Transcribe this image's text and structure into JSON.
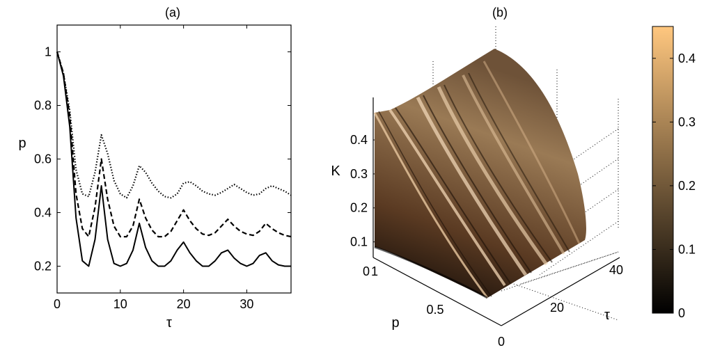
{
  "chart_data": [
    {
      "panel": "a",
      "type": "line",
      "title": "(a)",
      "xlabel": "τ",
      "ylabel": "p",
      "xlim": [
        0,
        37
      ],
      "ylim": [
        0.1,
        1.1
      ],
      "xticks": [
        "0",
        "10",
        "20",
        "30"
      ],
      "yticks": [
        "0.2",
        "0.4",
        "0.6",
        "0.8",
        "1"
      ],
      "grid": false,
      "series": [
        {
          "style": "dotted",
          "x": [
            0,
            1,
            2,
            3,
            4,
            5,
            6,
            7,
            8,
            9,
            10,
            11,
            12,
            13,
            14,
            15,
            16,
            17,
            18,
            19,
            20,
            21,
            22,
            23,
            24,
            25,
            26,
            27,
            28,
            29,
            30,
            31,
            32,
            33,
            34,
            35,
            36,
            37
          ],
          "y": [
            1.0,
            0.92,
            0.78,
            0.56,
            0.47,
            0.46,
            0.55,
            0.69,
            0.62,
            0.52,
            0.47,
            0.455,
            0.5,
            0.575,
            0.55,
            0.51,
            0.48,
            0.46,
            0.455,
            0.47,
            0.51,
            0.515,
            0.5,
            0.48,
            0.47,
            0.465,
            0.475,
            0.49,
            0.505,
            0.49,
            0.475,
            0.465,
            0.47,
            0.49,
            0.5,
            0.49,
            0.48,
            0.465
          ]
        },
        {
          "style": "dashed",
          "x": [
            0,
            1,
            2,
            3,
            4,
            5,
            6,
            7,
            8,
            9,
            10,
            11,
            12,
            13,
            14,
            15,
            16,
            17,
            18,
            19,
            20,
            21,
            22,
            23,
            24,
            25,
            26,
            27,
            28,
            29,
            30,
            31,
            32,
            33,
            34,
            35,
            36,
            37
          ],
          "y": [
            1.0,
            0.92,
            0.76,
            0.47,
            0.34,
            0.31,
            0.42,
            0.6,
            0.45,
            0.35,
            0.31,
            0.31,
            0.35,
            0.45,
            0.38,
            0.335,
            0.31,
            0.31,
            0.33,
            0.37,
            0.41,
            0.37,
            0.34,
            0.32,
            0.315,
            0.325,
            0.35,
            0.375,
            0.35,
            0.33,
            0.32,
            0.315,
            0.33,
            0.36,
            0.34,
            0.325,
            0.315,
            0.31
          ]
        },
        {
          "style": "solid",
          "x": [
            0,
            1,
            2,
            3,
            4,
            5,
            6,
            7,
            8,
            9,
            10,
            11,
            12,
            13,
            14,
            15,
            16,
            17,
            18,
            19,
            20,
            21,
            22,
            23,
            24,
            25,
            26,
            27,
            28,
            29,
            30,
            31,
            32,
            33,
            34,
            35,
            36,
            37
          ],
          "y": [
            1.0,
            0.91,
            0.72,
            0.38,
            0.22,
            0.2,
            0.3,
            0.5,
            0.3,
            0.21,
            0.2,
            0.21,
            0.26,
            0.36,
            0.27,
            0.22,
            0.2,
            0.2,
            0.22,
            0.26,
            0.29,
            0.25,
            0.22,
            0.2,
            0.2,
            0.22,
            0.25,
            0.26,
            0.23,
            0.21,
            0.2,
            0.21,
            0.24,
            0.25,
            0.22,
            0.205,
            0.2,
            0.2
          ]
        }
      ]
    },
    {
      "panel": "b",
      "type": "surface",
      "title": "(b)",
      "zlabel": "K",
      "ylabel": "p",
      "xlabel": "τ",
      "zticks": [
        "0.1",
        "0.2",
        "0.3",
        "0.4"
      ],
      "pticks": [
        "0",
        "1",
        "0.5",
        "0"
      ],
      "tauticks": [
        "20",
        "40"
      ],
      "colorbar": {
        "min": 0,
        "max": 0.45,
        "ticks": [
          "0",
          "0.1",
          "0.2",
          "0.3",
          "0.4"
        ],
        "colormap": "copper",
        "colors": [
          "#000000",
          "#ffc77f"
        ]
      }
    }
  ]
}
